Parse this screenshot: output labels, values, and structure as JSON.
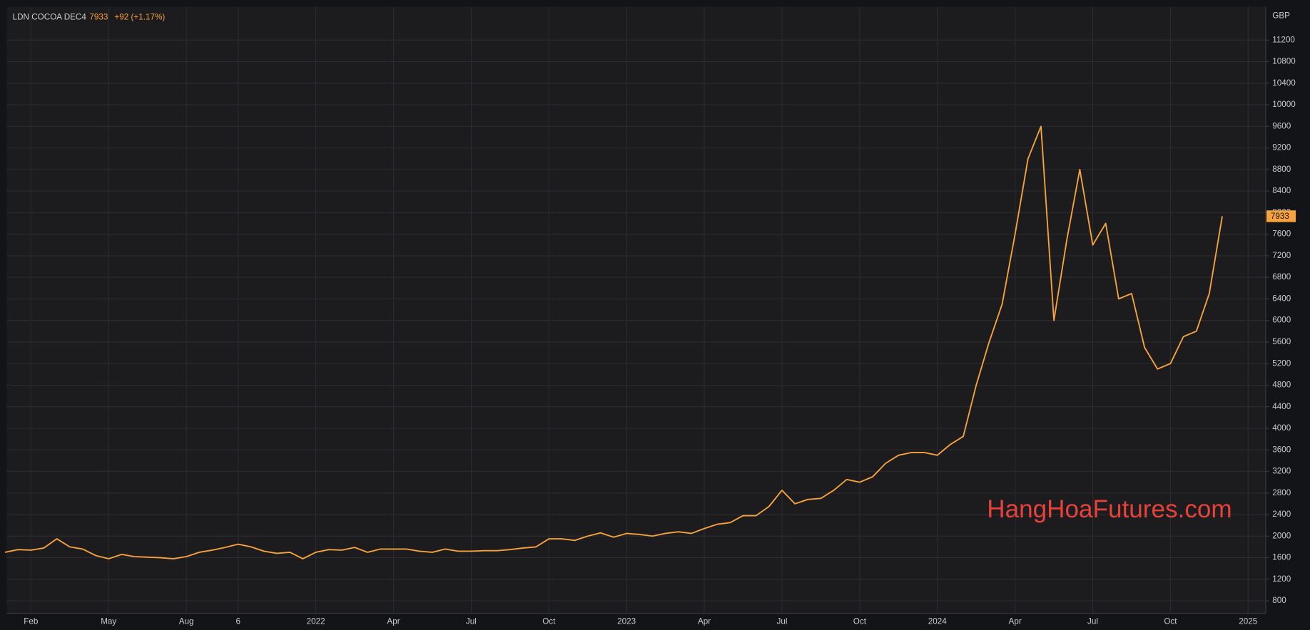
{
  "chart_data": {
    "type": "line",
    "title": "LDN COCOA DEC4",
    "last_value": 7933,
    "change_label": "+92 (+1.17%)",
    "y_unit": "GBP",
    "annotation": "HangHoaFutures.com",
    "categories": [
      null,
      null,
      "Feb",
      null,
      null,
      null,
      null,
      null,
      "May",
      null,
      null,
      null,
      null,
      null,
      "Aug",
      null,
      null,
      null,
      "6",
      null,
      null,
      null,
      null,
      null,
      "2022",
      null,
      null,
      null,
      null,
      null,
      "Apr",
      null,
      null,
      null,
      null,
      null,
      "Jul",
      null,
      null,
      null,
      null,
      null,
      "Oct",
      null,
      null,
      null,
      null,
      null,
      "2023",
      null,
      null,
      null,
      null,
      null,
      "Apr",
      null,
      null,
      null,
      null,
      null,
      "Jul",
      null,
      null,
      null,
      null,
      null,
      "Oct",
      null,
      null,
      null,
      null,
      null,
      "2024",
      null,
      null,
      null,
      null,
      null,
      "Apr",
      null,
      null,
      null,
      null,
      null,
      "Jul",
      null,
      null,
      null,
      null,
      null,
      "Oct",
      null,
      null,
      null,
      null,
      null,
      "2025"
    ],
    "series": [
      {
        "name": "LDN COCOA DEC4",
        "color": "#f7a23b",
        "values": [
          1700,
          1750,
          1740,
          1780,
          1950,
          1800,
          1760,
          1640,
          1580,
          1660,
          1620,
          1610,
          1600,
          1580,
          1620,
          1700,
          1740,
          1790,
          1850,
          1800,
          1720,
          1680,
          1700,
          1580,
          1700,
          1750,
          1740,
          1790,
          1700,
          1760,
          1760,
          1760,
          1720,
          1700,
          1760,
          1720,
          1720,
          1730,
          1730,
          1750,
          1780,
          1800,
          1950,
          1950,
          1920,
          2000,
          2060,
          1980,
          2050,
          2030,
          2000,
          2050,
          2080,
          2050,
          2140,
          2220,
          2250,
          2380,
          2380,
          2550,
          2850,
          2600,
          2680,
          2700,
          2850,
          3050,
          3000,
          3100,
          3350,
          3500,
          3550,
          3550,
          3500,
          3700,
          3850,
          4800,
          5600,
          6300,
          7600,
          9000,
          9600,
          6000,
          7500,
          8800,
          7400,
          7800,
          6400,
          6500,
          5500,
          5100,
          5200,
          5700,
          5800,
          6500,
          7933,
          null,
          null
        ]
      }
    ],
    "ylim": [
      568,
      11820
    ],
    "yticks": [
      800,
      1200,
      1600,
      2000,
      2400,
      2800,
      3200,
      3600,
      4000,
      4400,
      4800,
      5200,
      5600,
      6000,
      6400,
      6800,
      7200,
      7600,
      8000,
      8400,
      8800,
      9200,
      9600,
      10000,
      10400,
      10800,
      11200
    ],
    "grid": true
  }
}
